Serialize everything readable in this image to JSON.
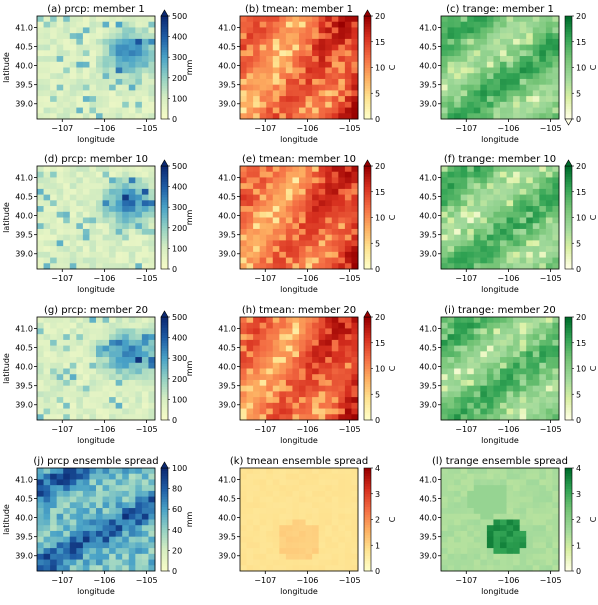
{
  "figure": {
    "background": "#ffffff"
  },
  "chart_data": [
    {
      "id": "a",
      "type": "heatmap",
      "title": "(a) prcp: member 1",
      "variable": "prcp",
      "member": 1,
      "colormap": "Blues",
      "colors": [
        "#f7fcc8",
        "#d7eec1",
        "#94d1c3",
        "#4aa3c7",
        "#1f5ea6",
        "#0c2a74"
      ],
      "xlabel": "longitude",
      "ylabel": "latitude",
      "xticks": [
        -107,
        -106,
        -105
      ],
      "yticks": [
        39.0,
        39.5,
        40.0,
        40.5,
        41.0
      ],
      "xlim": [
        -107.6,
        -104.8
      ],
      "ylim": [
        38.6,
        41.3
      ],
      "colorbar": {
        "label": "mm",
        "ticks": [
          0,
          100,
          200,
          300,
          400,
          500
        ],
        "range": [
          0,
          500
        ],
        "extend": "max"
      }
    },
    {
      "id": "b",
      "type": "heatmap",
      "title": "(b) tmean: member 1",
      "variable": "tmean",
      "member": 1,
      "colormap": "YlOrRd",
      "colors": [
        "#ffffc8",
        "#fee391",
        "#fdae61",
        "#f46d43",
        "#d7301f",
        "#990000"
      ],
      "xlabel": "longitude",
      "ylabel": "",
      "xticks": [
        -107,
        -106,
        -105
      ],
      "yticks": [
        39.0,
        39.5,
        40.0,
        40.5,
        41.0
      ],
      "xlim": [
        -107.6,
        -104.8
      ],
      "ylim": [
        38.6,
        41.3
      ],
      "colorbar": {
        "label": "C",
        "ticks": [
          0,
          5,
          10,
          15,
          20
        ],
        "range": [
          0,
          20
        ],
        "extend": "max"
      }
    },
    {
      "id": "c",
      "type": "heatmap",
      "title": "(c) trange: member 1",
      "variable": "trange",
      "member": 1,
      "colormap": "YlGn",
      "colors": [
        "#ffffe5",
        "#d9f0a3",
        "#a1d99b",
        "#74c476",
        "#31a354",
        "#006d2c"
      ],
      "xlabel": "longitude",
      "ylabel": "",
      "xticks": [
        -107,
        -106,
        -105
      ],
      "yticks": [
        39.0,
        39.5,
        40.0,
        40.5,
        41.0
      ],
      "xlim": [
        -107.6,
        -104.8
      ],
      "ylim": [
        38.6,
        41.3
      ],
      "colorbar": {
        "label": "C",
        "ticks": [
          0,
          5,
          10,
          15,
          20
        ],
        "range": [
          0,
          20
        ],
        "extend": "min"
      }
    },
    {
      "id": "d",
      "type": "heatmap",
      "title": "(d) prcp: member 10",
      "variable": "prcp",
      "member": 10,
      "colormap": "Blues",
      "colors": [
        "#f7fcc8",
        "#d7eec1",
        "#94d1c3",
        "#4aa3c7",
        "#1f5ea6",
        "#0c2a74"
      ],
      "xlabel": "longitude",
      "ylabel": "latitude",
      "xticks": [
        -107,
        -106,
        -105
      ],
      "yticks": [
        39.0,
        39.5,
        40.0,
        40.5,
        41.0
      ],
      "xlim": [
        -107.6,
        -104.8
      ],
      "ylim": [
        38.6,
        41.3
      ],
      "colorbar": {
        "label": "mm",
        "ticks": [
          0,
          100,
          200,
          300,
          400,
          500
        ],
        "range": [
          0,
          500
        ],
        "extend": "max"
      }
    },
    {
      "id": "e",
      "type": "heatmap",
      "title": "(e) tmean: member 10",
      "variable": "tmean",
      "member": 10,
      "colormap": "YlOrRd",
      "colors": [
        "#ffffc8",
        "#fee391",
        "#fdae61",
        "#f46d43",
        "#d7301f",
        "#990000"
      ],
      "xlabel": "longitude",
      "ylabel": "",
      "xticks": [
        -107,
        -106,
        -105
      ],
      "yticks": [
        39.0,
        39.5,
        40.0,
        40.5,
        41.0
      ],
      "xlim": [
        -107.6,
        -104.8
      ],
      "ylim": [
        38.6,
        41.3
      ],
      "colorbar": {
        "label": "C",
        "ticks": [
          0,
          5,
          10,
          15,
          20
        ],
        "range": [
          0,
          20
        ],
        "extend": "max"
      }
    },
    {
      "id": "f",
      "type": "heatmap",
      "title": "(f) trange: member 10",
      "variable": "trange",
      "member": 10,
      "colormap": "YlGn",
      "colors": [
        "#ffffe5",
        "#d9f0a3",
        "#a1d99b",
        "#74c476",
        "#31a354",
        "#006d2c"
      ],
      "xlabel": "longitude",
      "ylabel": "",
      "xticks": [
        -107,
        -106,
        -105
      ],
      "yticks": [
        39.0,
        39.5,
        40.0,
        40.5,
        41.0
      ],
      "xlim": [
        -107.6,
        -104.8
      ],
      "ylim": [
        38.6,
        41.3
      ],
      "colorbar": {
        "label": "C",
        "ticks": [
          0,
          5,
          10,
          15,
          20
        ],
        "range": [
          0,
          20
        ],
        "extend": "max"
      }
    },
    {
      "id": "g",
      "type": "heatmap",
      "title": "(g) prcp: member 20",
      "variable": "prcp",
      "member": 20,
      "colormap": "Blues",
      "colors": [
        "#f7fcc8",
        "#d7eec1",
        "#94d1c3",
        "#4aa3c7",
        "#1f5ea6",
        "#0c2a74"
      ],
      "xlabel": "longitude",
      "ylabel": "latitude",
      "xticks": [
        -107,
        -106,
        -105
      ],
      "yticks": [
        39.0,
        39.5,
        40.0,
        40.5,
        41.0
      ],
      "xlim": [
        -107.6,
        -104.8
      ],
      "ylim": [
        38.6,
        41.3
      ],
      "colorbar": {
        "label": "mm",
        "ticks": [
          0,
          100,
          200,
          300,
          400,
          500
        ],
        "range": [
          0,
          500
        ],
        "extend": "max"
      }
    },
    {
      "id": "h",
      "type": "heatmap",
      "title": "(h) tmean: member 20",
      "variable": "tmean",
      "member": 20,
      "colormap": "YlOrRd",
      "colors": [
        "#ffffc8",
        "#fee391",
        "#fdae61",
        "#f46d43",
        "#d7301f",
        "#990000"
      ],
      "xlabel": "longitude",
      "ylabel": "",
      "xticks": [
        -107,
        -106,
        -105
      ],
      "yticks": [
        39.0,
        39.5,
        40.0,
        40.5,
        41.0
      ],
      "xlim": [
        -107.6,
        -104.8
      ],
      "ylim": [
        38.6,
        41.3
      ],
      "colorbar": {
        "label": "C",
        "ticks": [
          0,
          5,
          10,
          15,
          20
        ],
        "range": [
          0,
          20
        ],
        "extend": "max"
      }
    },
    {
      "id": "i",
      "type": "heatmap",
      "title": "(i) trange: member 20",
      "variable": "trange",
      "member": 20,
      "colormap": "YlGn",
      "colors": [
        "#ffffe5",
        "#d9f0a3",
        "#a1d99b",
        "#74c476",
        "#31a354",
        "#006d2c"
      ],
      "xlabel": "longitude",
      "ylabel": "",
      "xticks": [
        -107,
        -106,
        -105
      ],
      "yticks": [
        39.0,
        39.5,
        40.0,
        40.5,
        41.0
      ],
      "xlim": [
        -107.6,
        -104.8
      ],
      "ylim": [
        38.6,
        41.3
      ],
      "colorbar": {
        "label": "C",
        "ticks": [
          0,
          5,
          10,
          15,
          20
        ],
        "range": [
          0,
          20
        ],
        "extend": "none"
      }
    },
    {
      "id": "j",
      "type": "heatmap",
      "title": "(j) prcp ensemble spread",
      "variable": "prcp",
      "member": null,
      "colormap": "Blues",
      "colors": [
        "#f7fcc8",
        "#d7eec1",
        "#94d1c3",
        "#4aa3c7",
        "#1f5ea6",
        "#0c2a74"
      ],
      "xlabel": "longitude",
      "ylabel": "latitude",
      "xticks": [
        -107,
        -106,
        -105
      ],
      "yticks": [
        39.0,
        39.5,
        40.0,
        40.5,
        41.0
      ],
      "xlim": [
        -107.6,
        -104.8
      ],
      "ylim": [
        38.6,
        41.3
      ],
      "colorbar": {
        "label": "mm",
        "ticks": [
          0,
          20,
          40,
          60,
          80,
          100
        ],
        "range": [
          0,
          100
        ],
        "extend": "max"
      }
    },
    {
      "id": "k",
      "type": "heatmap",
      "title": "(k) tmean ensemble spread",
      "variable": "tmean",
      "member": null,
      "colormap": "YlOrRd",
      "colors": [
        "#ffffc8",
        "#fee391",
        "#fdae61",
        "#f46d43",
        "#d7301f",
        "#990000"
      ],
      "xlabel": "longitude",
      "ylabel": "",
      "xticks": [
        -107,
        -106,
        -105
      ],
      "yticks": [
        39.0,
        39.5,
        40.0,
        40.5,
        41.0
      ],
      "xlim": [
        -107.6,
        -104.8
      ],
      "ylim": [
        38.6,
        41.3
      ],
      "colorbar": {
        "label": "C",
        "ticks": [
          0,
          1,
          2,
          3,
          4
        ],
        "range": [
          0,
          4
        ],
        "extend": "none"
      }
    },
    {
      "id": "l",
      "type": "heatmap",
      "title": "(l) trange ensemble spread",
      "variable": "trange",
      "member": null,
      "colormap": "YlGn",
      "colors": [
        "#ffffe5",
        "#d9f0a3",
        "#a1d99b",
        "#74c476",
        "#31a354",
        "#006d2c"
      ],
      "xlabel": "longitude",
      "ylabel": "",
      "xticks": [
        -107,
        -106,
        -105
      ],
      "yticks": [
        39.0,
        39.5,
        40.0,
        40.5,
        41.0
      ],
      "xlim": [
        -107.6,
        -104.8
      ],
      "ylim": [
        38.6,
        41.3
      ],
      "colorbar": {
        "label": "C",
        "ticks": [
          0,
          1,
          2,
          3,
          4
        ],
        "range": [
          0,
          4
        ],
        "extend": "none"
      }
    }
  ]
}
